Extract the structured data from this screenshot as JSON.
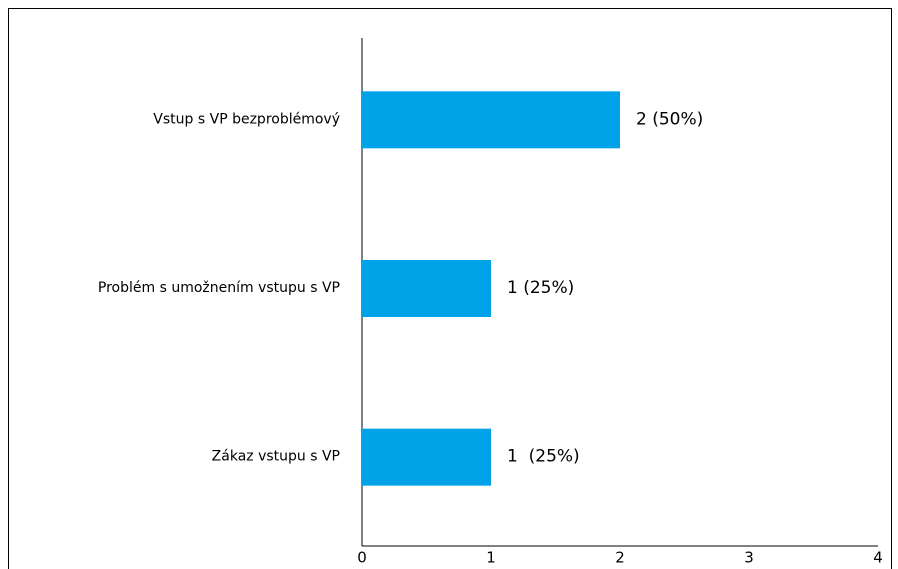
{
  "chart_data": {
    "type": "barh",
    "categories": [
      "Vstup s VP bezproblémový",
      "Problém s umožnením vstupu s VP",
      "Zákaz vstupu s VP"
    ],
    "values": [
      2,
      1,
      1
    ],
    "value_labels": [
      "2 (50%)",
      "1 (25%)",
      "1  (25%)"
    ],
    "color": "#00a2e8",
    "xlim": [
      0,
      4
    ],
    "xticks": [
      0,
      1,
      2,
      3,
      4
    ]
  }
}
